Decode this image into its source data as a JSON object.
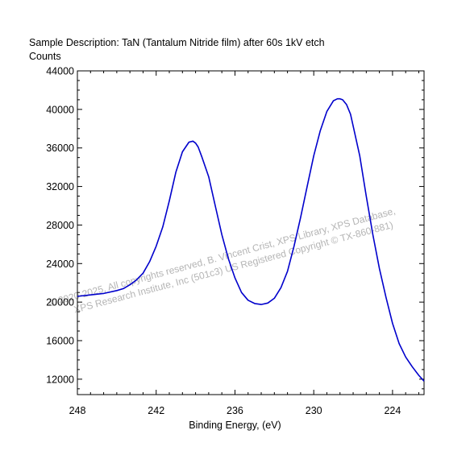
{
  "chart_data": {
    "type": "line",
    "title": "Sample Description:  TaN (Tantalum Nitride film) after 60s 1kV etch",
    "ylabel": "Counts",
    "xlabel": "Binding Energy, (eV)",
    "xlim": [
      248,
      221.6
    ],
    "ylim": [
      10400,
      44000
    ],
    "x_ticks": [
      248,
      242,
      236,
      230,
      224
    ],
    "y_ticks": [
      12000,
      16000,
      20000,
      24000,
      28000,
      32000,
      36000,
      40000,
      44000
    ],
    "grid": false,
    "series": [
      {
        "color": "#0000cc",
        "x": [
          248.0,
          247.0,
          246.0,
          245.0,
          244.5,
          244.0,
          243.5,
          243.0,
          242.5,
          242.0,
          241.5,
          241.0,
          240.5,
          240.0,
          239.5,
          239.2,
          239.0,
          238.8,
          238.5,
          238.0,
          237.5,
          237.0,
          236.5,
          236.0,
          235.5,
          235.0,
          234.5,
          234.0,
          233.5,
          233.0,
          232.5,
          232.0,
          231.5,
          231.0,
          230.5,
          230.0,
          229.5,
          229.0,
          228.5,
          228.2,
          228.0,
          227.8,
          227.5,
          227.2,
          227.0,
          226.5,
          226.0,
          225.5,
          225.0,
          224.5,
          224.0,
          223.5,
          223.0,
          222.5,
          222.0,
          221.6
        ],
        "y": [
          20600,
          20750,
          20900,
          21200,
          21400,
          21800,
          22300,
          23000,
          24200,
          25800,
          27800,
          30500,
          33500,
          35600,
          36600,
          36700,
          36500,
          36100,
          35000,
          33000,
          30000,
          27000,
          24500,
          22500,
          21000,
          20200,
          19850,
          19750,
          19900,
          20400,
          21500,
          23200,
          25800,
          28800,
          32000,
          35200,
          37800,
          39800,
          40900,
          41100,
          41100,
          41000,
          40500,
          39500,
          38300,
          35200,
          31000,
          27000,
          23500,
          20500,
          17800,
          15700,
          14300,
          13300,
          12400,
          11800
        ]
      }
    ]
  },
  "watermark": {
    "line1": "© 2020-2025,  All copyrights reserved,   B. Vincent Crist,  XPS Library, XPS Database,",
    "line2": "XPS Research Institute, Inc (501c3)    US Registered Copyright © TX-860-881)"
  }
}
